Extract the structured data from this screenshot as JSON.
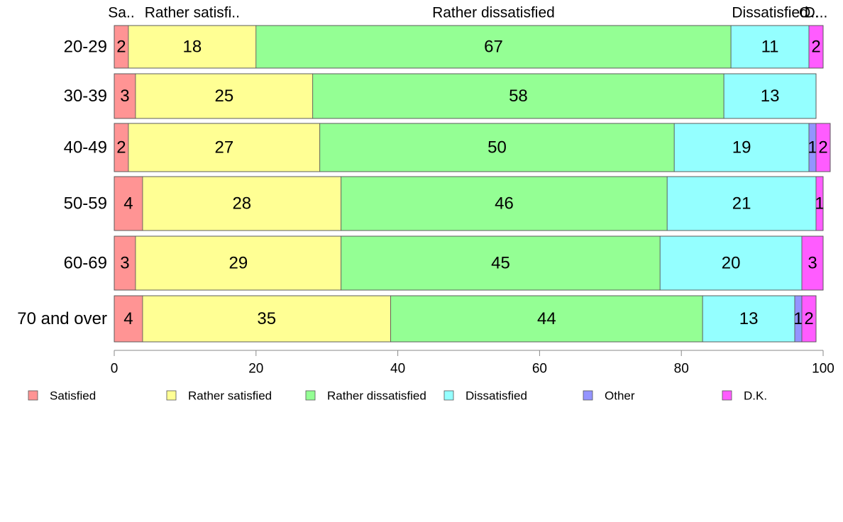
{
  "chart_data": {
    "type": "bar",
    "orientation": "horizontal",
    "stacked": true,
    "categories": [
      "20-29",
      "30-39",
      "40-49",
      "50-59",
      "60-69",
      "70 and over"
    ],
    "series": [
      {
        "name": "Satisfied",
        "color": "#ff9494",
        "values": [
          2,
          3,
          2,
          4,
          3,
          4
        ]
      },
      {
        "name": "Rather satisfied",
        "color": "#ffff94",
        "values": [
          18,
          25,
          27,
          28,
          29,
          35
        ]
      },
      {
        "name": "Rather dissatisfied",
        "color": "#94ff94",
        "values": [
          67,
          58,
          50,
          46,
          45,
          44
        ]
      },
      {
        "name": "Dissatisfied",
        "color": "#94ffff",
        "values": [
          11,
          13,
          19,
          21,
          20,
          13
        ]
      },
      {
        "name": "Other",
        "color": "#9494ff",
        "values": [
          0,
          0,
          1,
          0,
          0,
          1
        ]
      },
      {
        "name": "D.K.",
        "color": "#ff5cff",
        "values": [
          2,
          0,
          2,
          1,
          3,
          2
        ]
      }
    ],
    "top_labels": [
      "Sa..",
      "Rather satisfi..",
      "Rather dissatisfied",
      "Dissatisfied",
      "O..",
      "D..."
    ],
    "xlim": [
      0,
      100
    ],
    "xticks": [
      0,
      20,
      40,
      60,
      80,
      100
    ],
    "grid": false,
    "legend": "bottom"
  }
}
